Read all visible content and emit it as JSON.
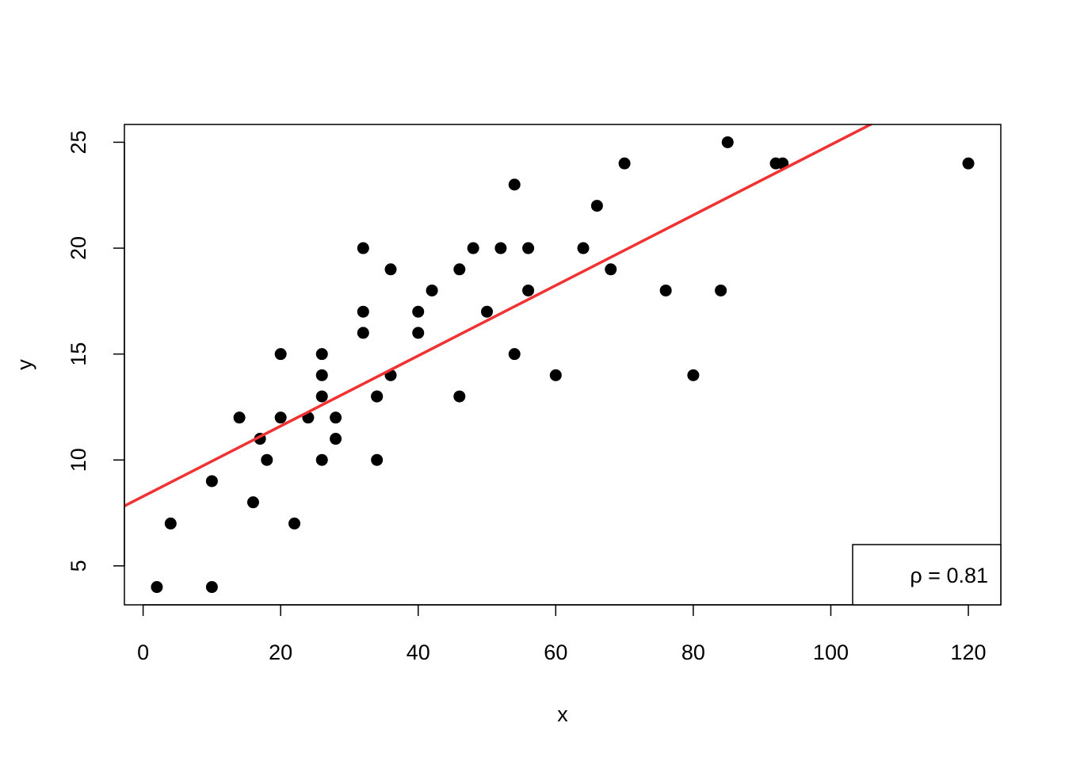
{
  "chart_data": {
    "type": "scatter",
    "x_label": "x",
    "y_label": "y",
    "x": [
      2,
      10,
      4,
      22,
      16,
      10,
      18,
      26,
      34,
      17,
      28,
      14,
      20,
      24,
      28,
      26,
      34,
      34,
      46,
      26,
      36,
      60,
      80,
      20,
      26,
      54,
      32,
      40,
      32,
      40,
      50,
      42,
      56,
      76,
      84,
      36,
      46,
      68,
      32,
      48,
      52,
      56,
      64,
      66,
      54,
      70,
      92,
      93,
      120,
      85
    ],
    "y": [
      4,
      4,
      7,
      7,
      8,
      9,
      10,
      10,
      10,
      11,
      11,
      12,
      12,
      12,
      12,
      13,
      13,
      13,
      13,
      14,
      14,
      14,
      14,
      15,
      15,
      15,
      16,
      16,
      17,
      17,
      17,
      18,
      18,
      18,
      18,
      19,
      19,
      19,
      20,
      20,
      20,
      20,
      20,
      22,
      23,
      24,
      24,
      24,
      24,
      25
    ],
    "color": "#000000",
    "trend_line": {
      "intercept": 8.28,
      "slope": 0.166,
      "color": "#f03232"
    },
    "legend": {
      "text": "ρ = 0.81",
      "position": "bottomright"
    },
    "xlim": [
      -2.72,
      124.72
    ],
    "ylim": [
      3.16,
      25.84
    ],
    "xticks": [
      0,
      20,
      40,
      60,
      80,
      100,
      120
    ],
    "yticks": [
      5,
      10,
      15,
      20,
      25
    ]
  }
}
